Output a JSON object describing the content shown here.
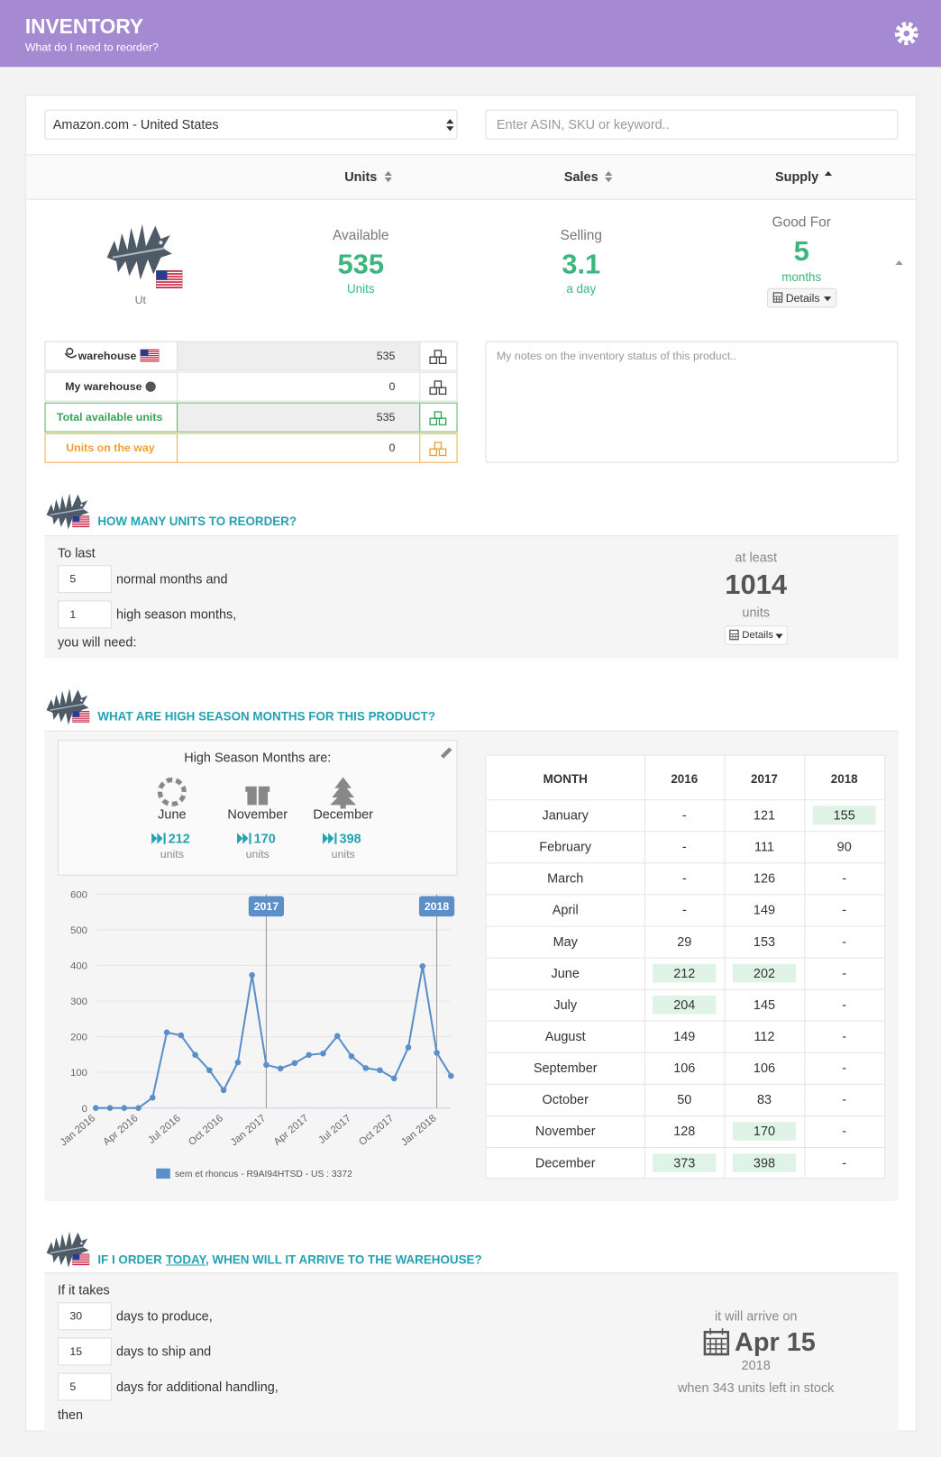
{
  "header": {
    "title": "INVENTORY",
    "subtitle": "What do I need to reorder?"
  },
  "filters": {
    "marketplace": "Amazon.com - United States",
    "search_placeholder": "Enter ASIN, SKU or keyword.."
  },
  "columns": [
    "Units",
    "Sales",
    "Supply"
  ],
  "product": {
    "caption": "Ut"
  },
  "summary": {
    "available": {
      "label": "Available",
      "value": 535,
      "unit": "Units"
    },
    "selling": {
      "label": "Selling",
      "value": 3.1,
      "unit": "a day"
    },
    "good_for": {
      "label": "Good For",
      "value": 5,
      "unit": "months",
      "button": "Details"
    }
  },
  "stock": [
    {
      "label": "warehouse",
      "value": 535
    },
    {
      "label": "My warehouse",
      "value": 0
    },
    {
      "label": "Total available units",
      "value": 535
    },
    {
      "label": "Units on the way",
      "value": 0
    }
  ],
  "notes_placeholder": "My notes on the inventory status of this product..",
  "reorder": {
    "title": "HOW MANY UNITS TO REORDER?",
    "intro": "To last",
    "normal_months": 5,
    "normal_text": "normal months and",
    "high_months": 1,
    "high_text": "high season months,",
    "outro": "you will need:",
    "result_label": "at least",
    "result": 1014,
    "result_unit": "units",
    "button": "Details"
  },
  "season": {
    "title": "WHAT ARE HIGH SEASON MONTHS FOR THIS PRODUCT?",
    "heading": "High Season Months are:",
    "months": [
      {
        "name": "June",
        "value": 212,
        "unit": "units"
      },
      {
        "name": "November",
        "value": 170,
        "unit": "units"
      },
      {
        "name": "December",
        "value": 398,
        "unit": "units"
      }
    ]
  },
  "chart_data": {
    "type": "line",
    "categories": [
      "Jan 2016",
      null,
      null,
      "Apr 2016",
      null,
      null,
      "Jul 2016",
      null,
      null,
      "Oct 2016",
      null,
      null,
      "Jan 2017",
      null,
      null,
      "Apr 2017",
      null,
      null,
      "Jul 2017",
      null,
      null,
      "Oct 2017",
      null,
      null,
      "Jan 2018",
      null
    ],
    "series": [
      {
        "name": "sem et rhoncus - R9AI94HTSD - US : 3372",
        "color": "#5b8fc9",
        "values": [
          0,
          0,
          0,
          0,
          29,
          212,
          204,
          149,
          106,
          50,
          128,
          373,
          121,
          111,
          126,
          149,
          153,
          202,
          145,
          112,
          106,
          83,
          170,
          398,
          155,
          90
        ]
      }
    ],
    "ylim": [
      0,
      600
    ],
    "yticks": [
      0,
      100,
      200,
      300,
      400,
      500,
      600
    ],
    "grid": true,
    "plot_lines": [
      {
        "category": "Jan 2017",
        "label": "2017"
      },
      {
        "category": "Jan 2018",
        "label": "2018"
      }
    ]
  },
  "table": {
    "headers": [
      "MONTH",
      "2016",
      "2017",
      "2018"
    ],
    "rows": [
      {
        "month": "January",
        "cells": [
          "-",
          121,
          155
        ],
        "highlight": [
          false,
          false,
          true
        ]
      },
      {
        "month": "February",
        "cells": [
          "-",
          111,
          90
        ],
        "highlight": [
          false,
          false,
          false
        ]
      },
      {
        "month": "March",
        "cells": [
          "-",
          126,
          "-"
        ],
        "highlight": [
          false,
          false,
          false
        ]
      },
      {
        "month": "April",
        "cells": [
          "-",
          149,
          "-"
        ],
        "highlight": [
          false,
          false,
          false
        ]
      },
      {
        "month": "May",
        "cells": [
          29,
          153,
          "-"
        ],
        "highlight": [
          false,
          false,
          false
        ]
      },
      {
        "month": "June",
        "cells": [
          212,
          202,
          "-"
        ],
        "highlight": [
          true,
          true,
          false
        ]
      },
      {
        "month": "July",
        "cells": [
          204,
          145,
          "-"
        ],
        "highlight": [
          true,
          false,
          false
        ]
      },
      {
        "month": "August",
        "cells": [
          149,
          112,
          "-"
        ],
        "highlight": [
          false,
          false,
          false
        ]
      },
      {
        "month": "September",
        "cells": [
          106,
          106,
          "-"
        ],
        "highlight": [
          false,
          false,
          false
        ]
      },
      {
        "month": "October",
        "cells": [
          50,
          83,
          "-"
        ],
        "highlight": [
          false,
          false,
          false
        ]
      },
      {
        "month": "November",
        "cells": [
          128,
          170,
          "-"
        ],
        "highlight": [
          false,
          true,
          false
        ]
      },
      {
        "month": "December",
        "cells": [
          373,
          398,
          "-"
        ],
        "highlight": [
          true,
          true,
          false
        ]
      }
    ]
  },
  "arrival": {
    "title_pre": "IF I ORDER",
    "title_link": "TODAY",
    "title_post": ", WHEN WILL IT ARRIVE TO THE WAREHOUSE?",
    "intro": "If it takes",
    "steps": [
      {
        "days": 30,
        "text": "days to produce,"
      },
      {
        "days": 15,
        "text": "days to ship and"
      },
      {
        "days": 5,
        "text": "days for additional handling,"
      }
    ],
    "outro": "then",
    "result_label": "it will arrive on",
    "date": "Apr 15",
    "year": 2018,
    "note": "when 343 units left in stock"
  }
}
